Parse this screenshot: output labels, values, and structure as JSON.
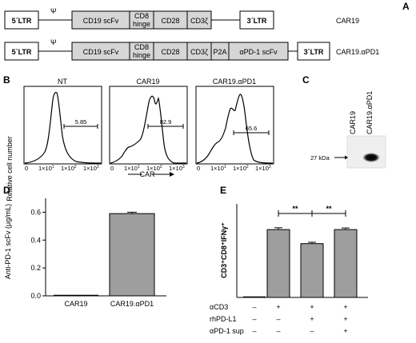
{
  "panels": {
    "A": {
      "label": "A",
      "constructs": [
        {
          "name": "CAR19",
          "ltr5": "5´LTR",
          "psi": "Ψ",
          "segments": [
            {
              "label": "CD19 scFv"
            },
            {
              "label": "CD8\nhinge"
            },
            {
              "label": "CD28"
            },
            {
              "label": "CD3ζ"
            }
          ],
          "ltr3": "3´LTR"
        },
        {
          "name": "CAR19.αPD1",
          "ltr5": "5´LTR",
          "psi": "Ψ",
          "segments": [
            {
              "label": "CD19 scFv"
            },
            {
              "label": "CD8\nhinge"
            },
            {
              "label": "CD28"
            },
            {
              "label": "CD3ζ"
            },
            {
              "label": "P2A"
            },
            {
              "label": "αPD-1 scFv"
            }
          ],
          "ltr3": "3´LTR"
        }
      ]
    },
    "B": {
      "label": "B",
      "ylabel": "Relative cell number",
      "xlabel": "CAR",
      "tick_labels": [
        "0",
        "1×10",
        "1×10",
        "1×10"
      ],
      "tick_exponents": [
        "1",
        "2",
        "3"
      ],
      "histograms": [
        {
          "title": "NT",
          "gate_value": "5.85"
        },
        {
          "title": "CAR19",
          "gate_value": "82.9"
        },
        {
          "title": "CAR19.αPD1",
          "gate_value": "65.6"
        }
      ]
    },
    "C": {
      "label": "C",
      "lanes": [
        "CAR19",
        "CAR19.αPD1"
      ],
      "marker": "27 kDa"
    }
  },
  "chart_data": [
    {
      "panel": "D",
      "type": "bar",
      "ylabel": "Anti-PD-1 scFv (μg/mL)",
      "categories": [
        "CAR19",
        "CAR19.αPD1"
      ],
      "values": [
        0.0,
        0.59
      ],
      "errors": [
        0.0,
        0.01
      ],
      "ylim": [
        0,
        0.7
      ],
      "yticks": [
        "0.0",
        "0.2",
        "0.4",
        "0.6"
      ]
    },
    {
      "panel": "E",
      "type": "bar",
      "ylabel": "CD3⁺CD8⁺IFNγ⁺",
      "values": [
        0.0,
        29.0,
        23.0,
        29.0
      ],
      "errors": [
        0.0,
        0.8,
        0.6,
        0.7
      ],
      "ylim": [
        0,
        40
      ],
      "conditions": [
        {
          "name": "αCD3",
          "marks": [
            "–",
            "+",
            "+",
            "+"
          ]
        },
        {
          "name": "rhPD-L1",
          "marks": [
            "–",
            "–",
            "+",
            "+"
          ]
        },
        {
          "name": "αPD-1 sup",
          "marks": [
            "–",
            "–",
            "–",
            "+"
          ]
        }
      ],
      "significance": [
        {
          "from": 1,
          "to": 2,
          "label": "**"
        },
        {
          "from": 2,
          "to": 3,
          "label": "**"
        }
      ]
    }
  ],
  "colors": {
    "bar": "#9e9e9e",
    "segment": "#d6d6d6",
    "ink": "#000000"
  }
}
